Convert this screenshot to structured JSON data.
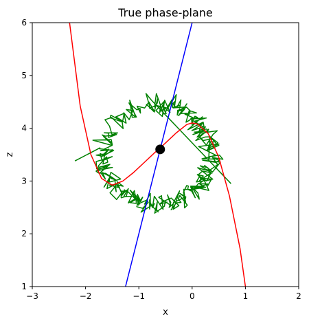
{
  "chart_data": {
    "type": "line",
    "title": "True phase-plane",
    "xlabel": "x",
    "ylabel": "z",
    "xlim": [
      -3,
      2
    ],
    "ylim": [
      1,
      6
    ],
    "xticks": [
      -3,
      -2,
      -1,
      0,
      1,
      2
    ],
    "yticks": [
      1,
      2,
      3,
      4,
      5,
      6
    ],
    "grid": false,
    "legend": "none",
    "series": [
      {
        "kind": "noisy-trajectory",
        "color": "#008000",
        "center": [
          -0.65,
          3.5
        ],
        "radius_x": 1.0,
        "radius_y": 0.95,
        "noise": 0.22,
        "n_points": 360,
        "start": [
          -2.2,
          3.38
        ],
        "end": [
          0.73,
          2.95
        ]
      },
      {
        "kind": "cubic-nullcline",
        "color": "#ff0000",
        "equation": "z = x^2 - x^3 + ... (cubic)",
        "x": [
          -2.3,
          -2.1,
          -1.9,
          -1.7,
          -1.5,
          -1.3,
          -1.1,
          -0.9,
          -0.7,
          -0.5,
          -0.3,
          -0.1,
          0.0,
          0.1,
          0.3,
          0.5,
          0.7,
          0.9,
          1.0
        ],
        "y": [
          6.0,
          4.42,
          3.5,
          3.05,
          2.92,
          3.0,
          3.16,
          3.35,
          3.54,
          3.72,
          3.91,
          4.07,
          4.1,
          4.08,
          3.9,
          3.45,
          2.72,
          1.72,
          1.0
        ]
      },
      {
        "kind": "linear-nullcline",
        "color": "#0000ff",
        "x": [
          -1.25,
          0.0
        ],
        "y": [
          1.0,
          6.0
        ]
      }
    ],
    "equilibrium": {
      "x": -0.6,
      "y": 3.6,
      "color": "#000000"
    }
  }
}
